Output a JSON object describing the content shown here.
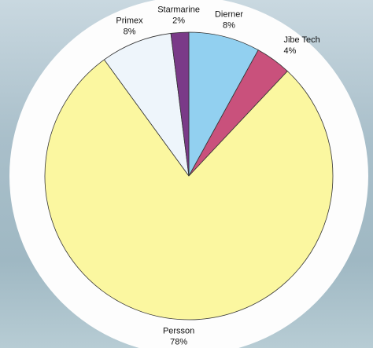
{
  "chart_data": {
    "type": "pie",
    "categories": [
      "Dierner",
      "Jibe Tech",
      "Persson",
      "Primex",
      "Starmarine"
    ],
    "values": [
      8,
      4,
      78,
      8,
      2
    ],
    "value_labels": [
      "8%",
      "4%",
      "78%",
      "8%",
      "2%"
    ],
    "colors": [
      "#92d0f0",
      "#c9517c",
      "#fbf7a0",
      "#eef5fb",
      "#7a3a88"
    ]
  }
}
